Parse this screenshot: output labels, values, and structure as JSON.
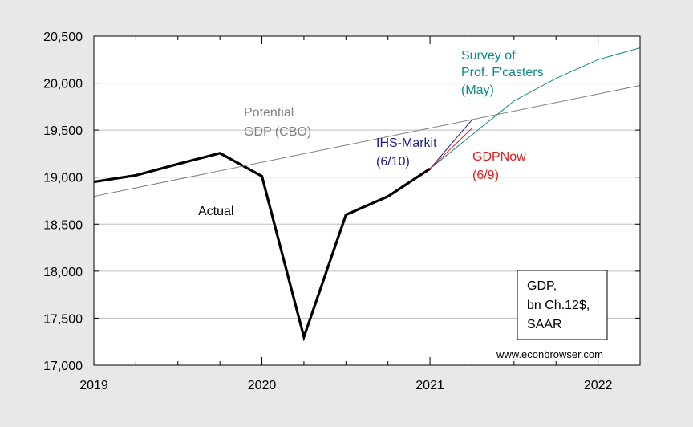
{
  "chart_data": {
    "type": "line",
    "x_axis": {
      "range": [
        "2019Q1",
        "2022Q2"
      ],
      "tick_labels": [
        "2019",
        "2020",
        "2021",
        "2022"
      ]
    },
    "y_axis": {
      "range": [
        17000,
        20500
      ],
      "tick_labels": [
        "17,000",
        "17,500",
        "18,000",
        "18,500",
        "19,000",
        "19,500",
        "20,000",
        "20,500"
      ],
      "grid": true
    },
    "series": [
      {
        "name": "Actual",
        "color": "#000000",
        "x": [
          "2019Q1",
          "2019Q2",
          "2019Q3",
          "2019Q4",
          "2020Q1",
          "2020Q2",
          "2020Q3",
          "2020Q4",
          "2021Q1"
        ],
        "values": [
          18950,
          19020,
          19140,
          19255,
          19010,
          17300,
          18600,
          18795,
          19090
        ]
      },
      {
        "name": "Potential GDP (CBO)",
        "color": "#808080",
        "x": [
          "2019Q1",
          "2022Q2"
        ],
        "values": [
          18795,
          19975
        ]
      },
      {
        "name": "Survey of Prof. F'casters (May)",
        "color": "#138a8a",
        "x": [
          "2021Q1",
          "2021Q2",
          "2021Q3",
          "2021Q4",
          "2022Q1",
          "2022Q2"
        ],
        "values": [
          19090,
          19450,
          19810,
          20050,
          20250,
          20375
        ]
      },
      {
        "name": "IHS-Markit (6/10)",
        "color": "#1c1c8c",
        "x": [
          "2021Q1",
          "2021Q2"
        ],
        "values": [
          19090,
          19610
        ]
      },
      {
        "name": "GDPNow (6/9)",
        "color": "#e41a1c",
        "x": [
          "2021Q1",
          "2021Q2"
        ],
        "values": [
          19090,
          19520
        ]
      }
    ],
    "annotations": {
      "potential": [
        "Potential",
        "GDP (CBO)"
      ],
      "ihs": [
        "IHS-Markit",
        "(6/10)"
      ],
      "gdpnow": [
        "GDPNow",
        "(6/9)"
      ],
      "spf": [
        "Survey of",
        "Prof. F'casters",
        "(May)"
      ],
      "actual": "Actual",
      "legend_box": [
        "GDP,",
        "bn Ch.12$,",
        "SAAR"
      ],
      "credit": "www.econbrowser.com"
    }
  }
}
